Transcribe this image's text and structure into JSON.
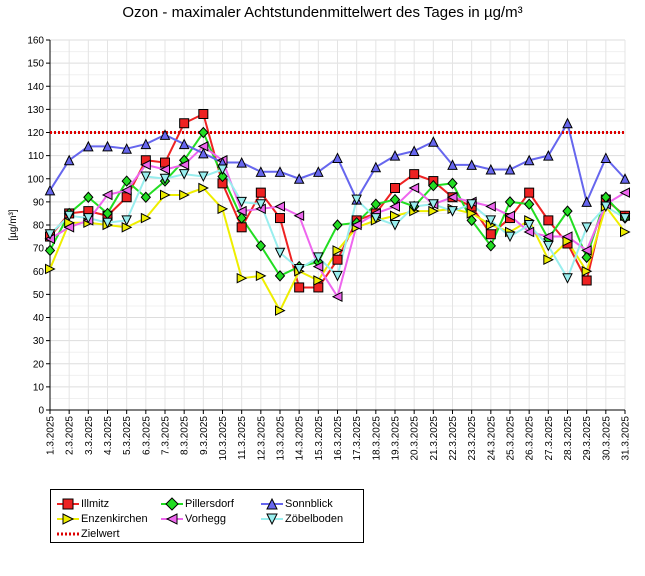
{
  "chart_data": {
    "type": "line",
    "title": "Ozon -  maximaler Achtstundenmittelwert des Tages in µg/m³",
    "ylabel": "[µg/m³]",
    "xlabel": "",
    "ylim": [
      0,
      160
    ],
    "ytick_step": 10,
    "grid": true,
    "legend_position": "bottom-left",
    "categories": [
      "1.3.2025",
      "2.3.2025",
      "3.3.2025",
      "4.3.2025",
      "5.3.2025",
      "6.3.2025",
      "7.3.2025",
      "8.3.2025",
      "9.3.2025",
      "10.3.2025",
      "11.3.2025",
      "12.3.2025",
      "13.3.2025",
      "14.3.2025",
      "15.3.2025",
      "16.3.2025",
      "17.3.2025",
      "18.3.2025",
      "19.3.2025",
      "20.3.2025",
      "21.3.2025",
      "22.3.2025",
      "23.3.2025",
      "24.3.2025",
      "25.3.2025",
      "26.3.2025",
      "27.3.2025",
      "28.3.2025",
      "29.3.2025",
      "30.3.2025",
      "31.3.2025"
    ],
    "series": [
      {
        "name": "Illmitz",
        "color": "#ee2222",
        "marker": "square",
        "values": [
          75,
          85,
          86,
          84,
          92,
          108,
          107,
          124,
          128,
          98,
          79,
          94,
          83,
          53,
          53,
          65,
          82,
          85,
          96,
          102,
          99,
          92,
          88,
          76,
          83,
          94,
          82,
          72,
          56,
          91,
          84
        ]
      },
      {
        "name": "Enzenkirchen",
        "color": "#eeee00",
        "marker": "triangle-right",
        "values": [
          61,
          81,
          81,
          80,
          79,
          83,
          93,
          93,
          96,
          87,
          57,
          58,
          43,
          60,
          56,
          69,
          79,
          82,
          84,
          86,
          86,
          87,
          85,
          80,
          77,
          82,
          65,
          73,
          60,
          88,
          77
        ]
      },
      {
        "name": "Pillersdorf",
        "color": "#22dd22",
        "marker": "diamond",
        "values": [
          69,
          85,
          92,
          85,
          99,
          92,
          99,
          108,
          120,
          101,
          83,
          71,
          58,
          62,
          64,
          80,
          81,
          89,
          91,
          88,
          97,
          98,
          82,
          71,
          90,
          89,
          74,
          86,
          66,
          92,
          83
        ]
      },
      {
        "name": "Vorhegg",
        "color": "#ee66ee",
        "marker": "triangle-left",
        "values": [
          74,
          79,
          82,
          93,
          95,
          106,
          104,
          106,
          114,
          108,
          86,
          87,
          88,
          84,
          62,
          49,
          80,
          85,
          88,
          96,
          89,
          92,
          90,
          88,
          84,
          77,
          75,
          75,
          69,
          89,
          94
        ]
      },
      {
        "name": "Sonnblick",
        "color": "#6666ee",
        "marker": "triangle-up",
        "values": [
          95,
          108,
          114,
          114,
          113,
          115,
          119,
          115,
          111,
          107,
          107,
          103,
          103,
          100,
          103,
          109,
          91,
          105,
          110,
          112,
          116,
          106,
          106,
          104,
          104,
          108,
          110,
          124,
          90,
          109,
          100
        ]
      },
      {
        "name": "Zöbelboden",
        "color": "#99eeee",
        "marker": "triangle-down",
        "values": [
          76,
          84,
          83,
          81,
          82,
          101,
          100,
          102,
          101,
          104,
          90,
          89,
          68,
          61,
          66,
          58,
          91,
          83,
          80,
          88,
          89,
          86,
          89,
          82,
          75,
          80,
          71,
          57,
          79,
          88,
          83
        ]
      },
      {
        "name": "Zielwert",
        "color": "#dd0000",
        "marker": "none",
        "dashed": true,
        "values": [
          120,
          120,
          120,
          120,
          120,
          120,
          120,
          120,
          120,
          120,
          120,
          120,
          120,
          120,
          120,
          120,
          120,
          120,
          120,
          120,
          120,
          120,
          120,
          120,
          120,
          120,
          120,
          120,
          120,
          120,
          120
        ]
      }
    ]
  }
}
